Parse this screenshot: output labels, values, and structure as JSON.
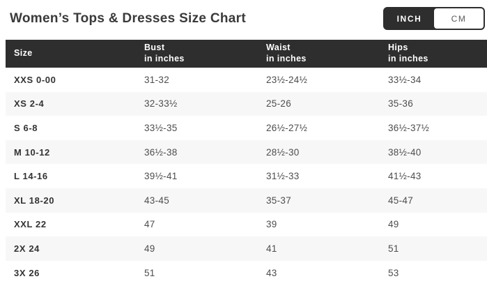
{
  "page": {
    "title": "Women’s Tops & Dresses Size Chart"
  },
  "unit_toggle": {
    "inch_label": "INCH",
    "cm_label": "CM",
    "active_unit": "INCH"
  },
  "table": {
    "columns": [
      {
        "label": "Size",
        "sub": ""
      },
      {
        "label": "Bust",
        "sub": "in inches"
      },
      {
        "label": "Waist",
        "sub": "in inches"
      },
      {
        "label": "Hips",
        "sub": "in inches"
      }
    ],
    "rows": [
      {
        "size": "XXS 0-00",
        "bust": "31-32",
        "waist": "23½-24½",
        "hips": "33½-34"
      },
      {
        "size": "XS 2-4",
        "bust": "32-33½",
        "waist": "25-26",
        "hips": "35-36"
      },
      {
        "size": "S 6-8",
        "bust": "33½-35",
        "waist": "26½-27½",
        "hips": "36½-37½"
      },
      {
        "size": "M 10-12",
        "bust": "36½-38",
        "waist": "28½-30",
        "hips": "38½-40"
      },
      {
        "size": "L 14-16",
        "bust": "39½-41",
        "waist": "31½-33",
        "hips": "41½-43"
      },
      {
        "size": "XL 18-20",
        "bust": "43-45",
        "waist": "35-37",
        "hips": "45-47"
      },
      {
        "size": "XXL 22",
        "bust": "47",
        "waist": "39",
        "hips": "49"
      },
      {
        "size": "2X 24",
        "bust": "49",
        "waist": "41",
        "hips": "51"
      },
      {
        "size": "3X 26",
        "bust": "51",
        "waist": "43",
        "hips": "53"
      }
    ]
  },
  "colors": {
    "header_bg": "#2e2e2e",
    "row_stripe_bg": "#f7f7f7",
    "title_text": "#3a3a3a",
    "value_text": "#4d4d4d",
    "toggle_active_text": "#ffffff",
    "toggle_inactive_bg": "#ffffff"
  }
}
